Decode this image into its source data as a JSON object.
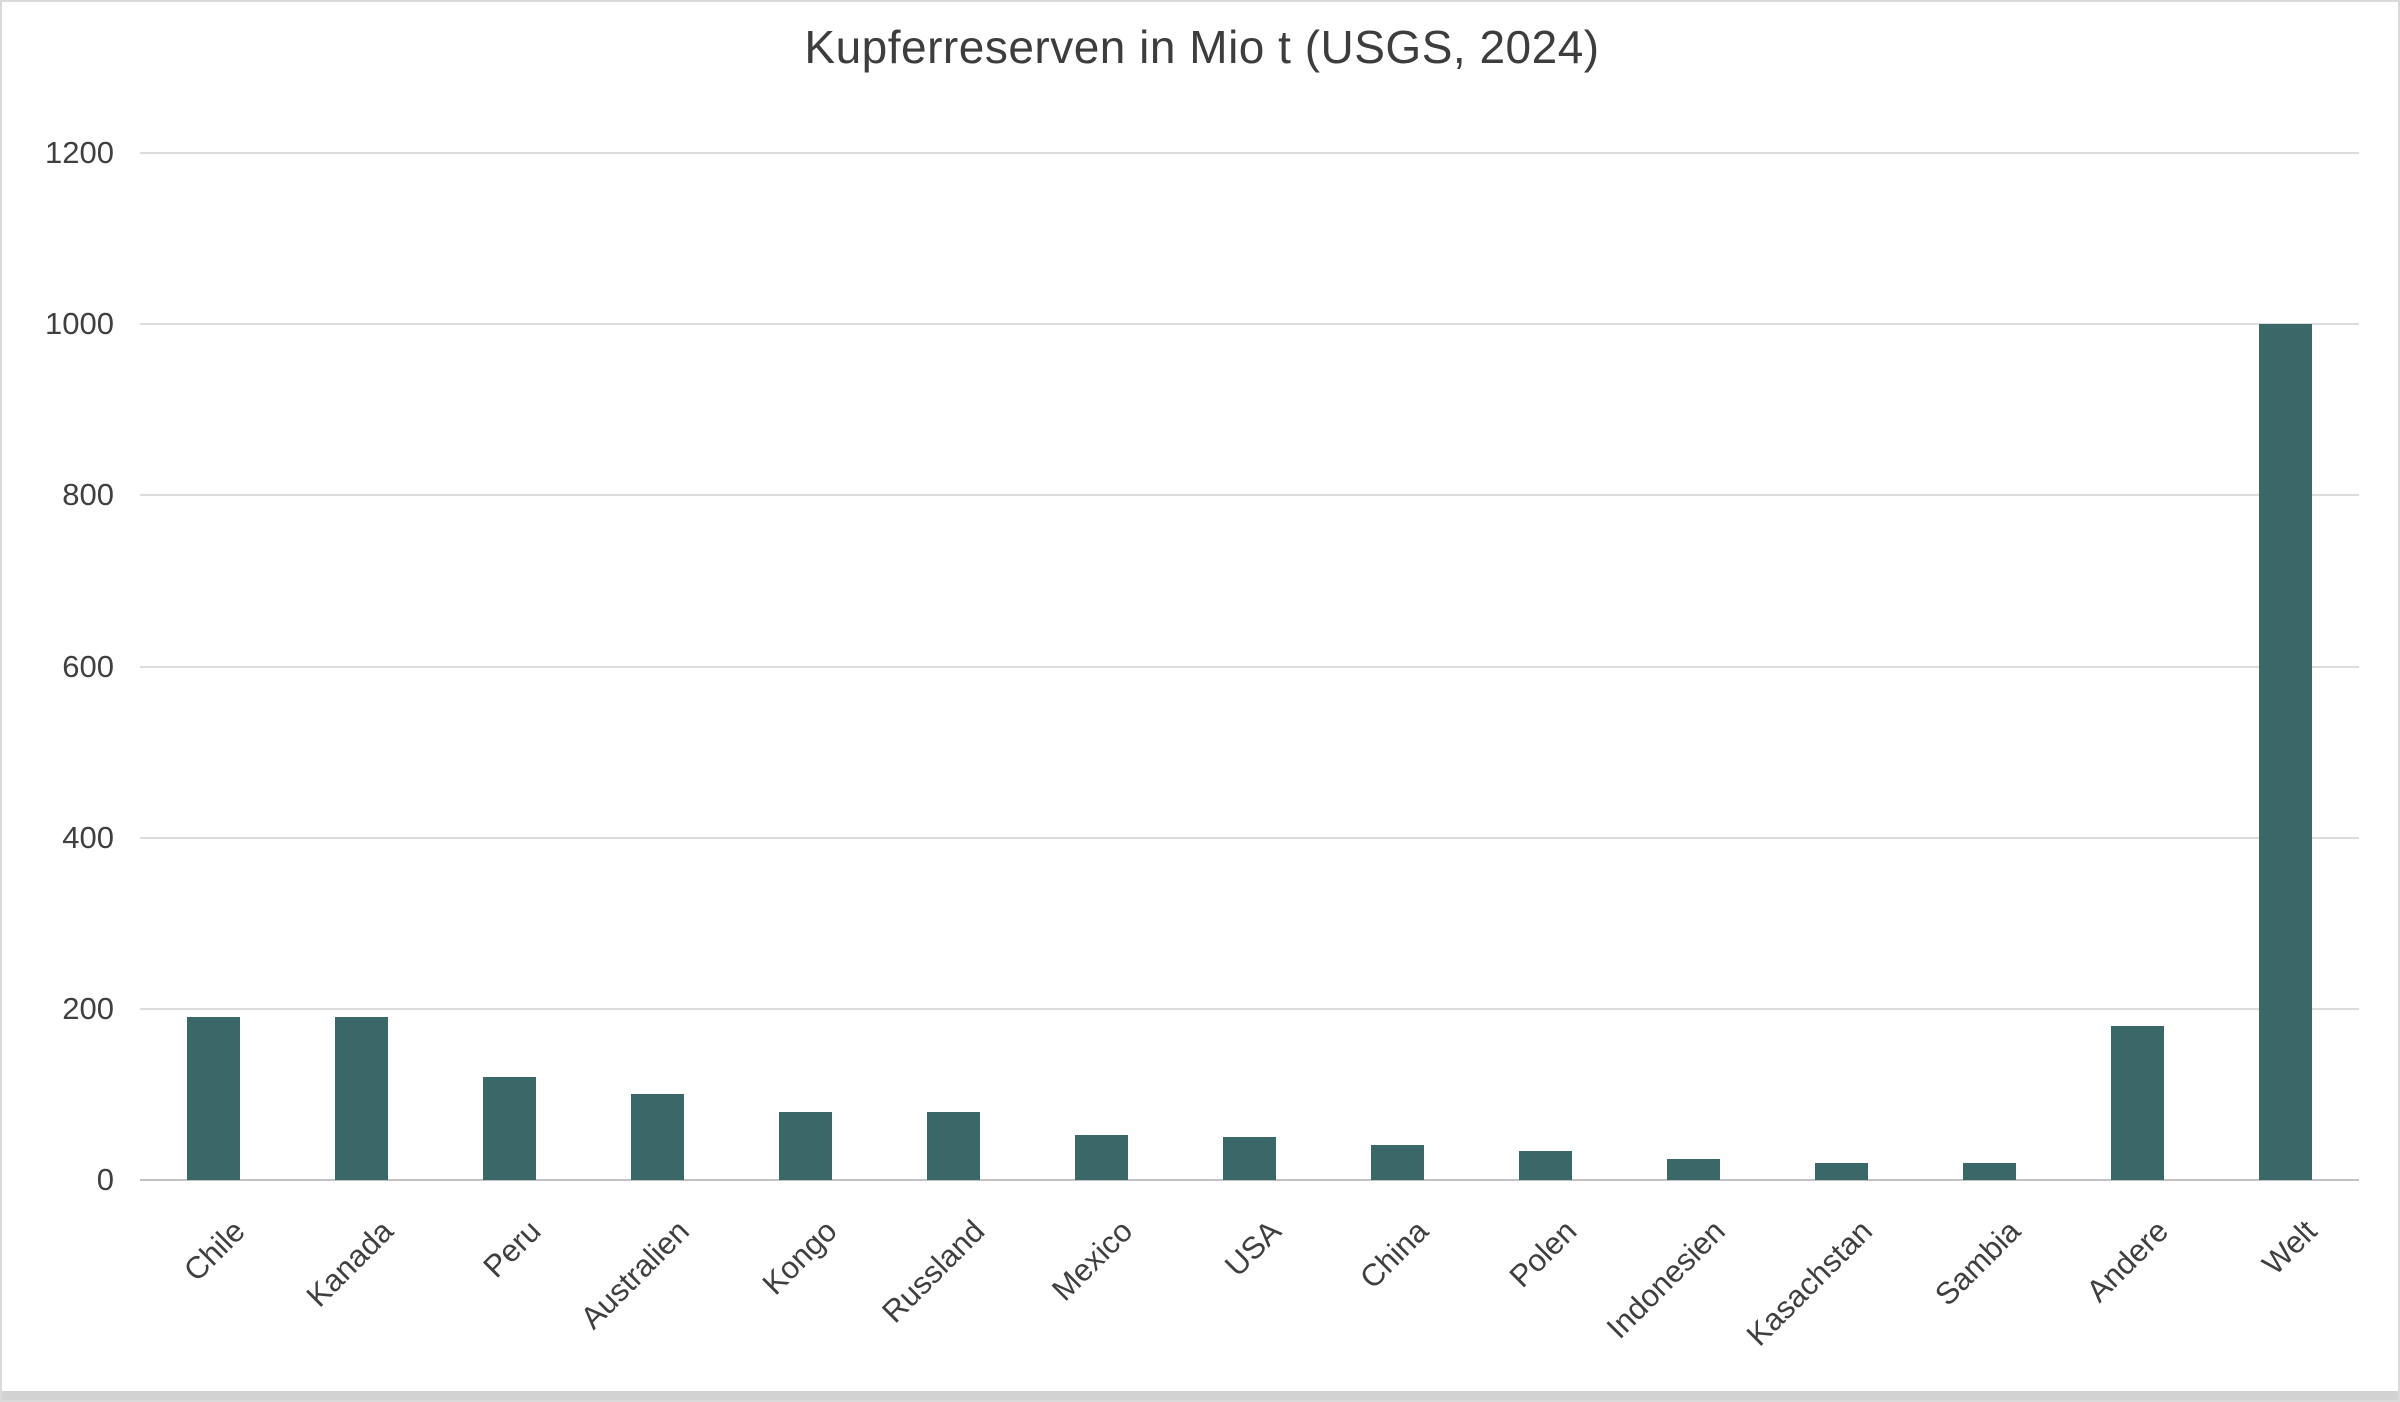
{
  "title": "Kupferreserven in Mio t (USGS, 2024)",
  "colors": {
    "bar": "#3a6868",
    "gridline": "#dcdcdc",
    "axis_line": "#c2c2c2",
    "text": "#404040",
    "background": "#ffffff",
    "frame_border": "#dadada",
    "bottom_strip": "#d2d2d2"
  },
  "chart_data": {
    "type": "bar",
    "title": "Kupferreserven in Mio t (USGS, 2024)",
    "categories": [
      "Chile",
      "Kanada",
      "Peru",
      "Australien",
      "Kongo",
      "Russland",
      "Mexico",
      "USA",
      "China",
      "Polen",
      "Indonesien",
      "Kasachstan",
      "Sambia",
      "Andere",
      "Welt"
    ],
    "values": [
      190,
      190,
      120,
      100,
      80,
      80,
      53,
      50,
      41,
      34,
      24,
      20,
      20,
      180,
      1000
    ],
    "xlabel": "",
    "ylabel": "",
    "ylim": [
      0,
      1200
    ],
    "yticks": [
      0,
      200,
      400,
      600,
      800,
      1000,
      1200
    ],
    "grid": true,
    "legend_position": "none",
    "x_tick_rotation_deg": 45,
    "bar_color": "#3a6868"
  }
}
